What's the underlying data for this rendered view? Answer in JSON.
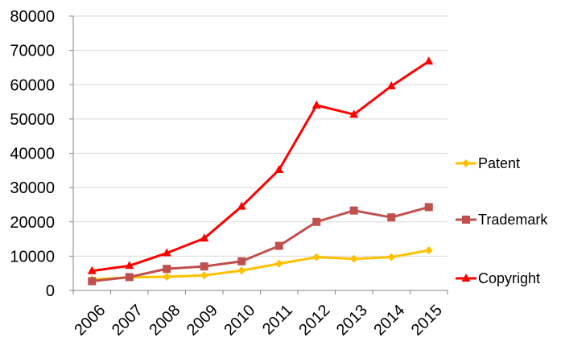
{
  "chart_data": {
    "type": "line",
    "title": "",
    "xlabel": "",
    "ylabel": "",
    "categories": [
      "2006",
      "2007",
      "2008",
      "2009",
      "2010",
      "2011",
      "2012",
      "2013",
      "2014",
      "2015"
    ],
    "ylim": [
      0,
      80000
    ],
    "yticks": [
      "0",
      "10000",
      "20000",
      "30000",
      "40000",
      "50000",
      "60000",
      "70000",
      "80000"
    ],
    "grid": "horizontal",
    "legend_position": "right",
    "series": [
      {
        "name": "Patent",
        "color": "#ffc000",
        "marker": "diamond",
        "values": [
          3200,
          3800,
          4000,
          4400,
          5800,
          7800,
          9700,
          9200,
          9700,
          11700
        ]
      },
      {
        "name": "Trademark",
        "color": "#c0504d",
        "marker": "square",
        "values": [
          2700,
          3900,
          6300,
          7000,
          8500,
          13000,
          20000,
          23300,
          21300,
          24300
        ]
      },
      {
        "name": "Copyright",
        "color": "#ff0000",
        "marker": "triangle",
        "values": [
          5700,
          7200,
          10900,
          15200,
          24500,
          35200,
          54000,
          51300,
          59600,
          66800
        ]
      }
    ]
  }
}
